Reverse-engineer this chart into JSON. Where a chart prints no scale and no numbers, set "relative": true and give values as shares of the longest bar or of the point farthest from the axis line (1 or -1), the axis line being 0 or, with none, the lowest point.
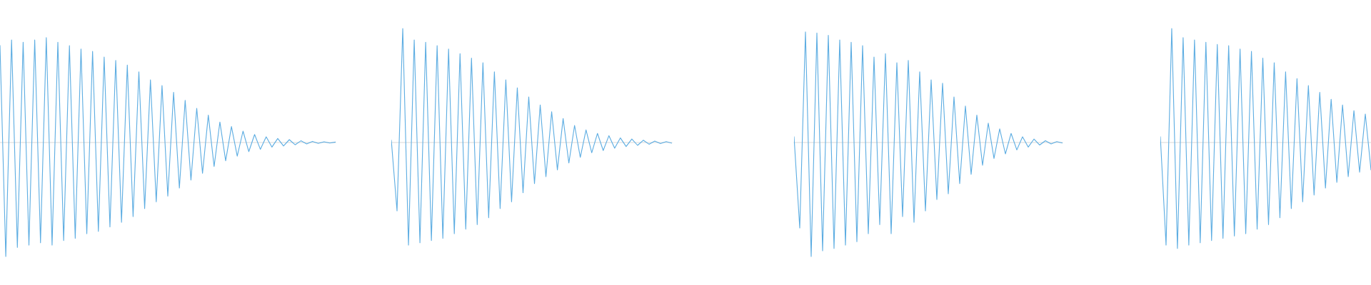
{
  "chart_data": [
    {
      "type": "line",
      "relative": true,
      "categories": [
        null,
        null,
        null,
        null,
        null,
        null,
        null,
        null,
        null,
        null,
        null,
        null,
        null,
        null,
        null,
        null,
        null,
        null,
        null,
        null,
        null,
        null,
        null,
        null,
        null,
        null,
        null,
        null,
        null,
        null,
        null,
        null,
        null,
        null,
        null,
        null,
        null,
        null,
        null,
        null,
        null,
        null,
        null,
        null,
        null,
        null,
        null,
        null,
        null,
        null,
        null,
        null,
        null,
        null,
        null,
        null,
        null,
        null,
        null
      ],
      "series": [
        {
          "color": "#5dade2",
          "values": [
            0.85,
            -1,
            0.9,
            -0.92,
            0.88,
            -0.9,
            0.9,
            -0.88,
            0.92,
            -0.9,
            0.88,
            -0.86,
            0.85,
            -0.84,
            0.82,
            -0.8,
            0.8,
            -0.78,
            0.75,
            -0.74,
            0.72,
            -0.7,
            0.68,
            -0.65,
            0.62,
            -0.58,
            0.55,
            -0.52,
            0.5,
            -0.47,
            0.44,
            -0.4,
            0.37,
            -0.33,
            0.3,
            -0.27,
            0.24,
            -0.21,
            0.18,
            -0.16,
            0.14,
            -0.12,
            0.1,
            -0.08,
            0.07,
            -0.06,
            0.05,
            -0.04,
            0.035,
            -0.03,
            0.025,
            -0.02,
            0.015,
            -0.012,
            0.01,
            -0.008,
            0.006,
            -0.005,
            0.004
          ]
        }
      ]
    },
    {
      "type": "line",
      "relative": true,
      "categories": [
        null,
        null,
        null,
        null,
        null,
        null,
        null,
        null,
        null,
        null,
        null,
        null,
        null,
        null,
        null,
        null,
        null,
        null,
        null,
        null,
        null,
        null,
        null,
        null,
        null,
        null,
        null,
        null,
        null,
        null,
        null,
        null,
        null,
        null,
        null,
        null,
        null,
        null,
        null,
        null,
        null,
        null,
        null,
        null,
        null,
        null,
        null,
        null,
        null,
        null
      ],
      "series": [
        {
          "color": "#5dade2",
          "values": [
            0.02,
            -0.6,
            1,
            -0.9,
            0.9,
            -0.88,
            0.88,
            -0.86,
            0.85,
            -0.84,
            0.82,
            -0.8,
            0.78,
            -0.76,
            0.74,
            -0.72,
            0.7,
            -0.66,
            0.62,
            -0.58,
            0.55,
            -0.52,
            0.48,
            -0.44,
            0.4,
            -0.36,
            0.33,
            -0.3,
            0.27,
            -0.24,
            0.21,
            -0.18,
            0.15,
            -0.13,
            0.11,
            -0.09,
            0.08,
            -0.07,
            0.06,
            -0.05,
            0.04,
            -0.035,
            0.03,
            -0.025,
            0.02,
            -0.015,
            0.012,
            -0.01,
            0.008,
            -0.006
          ]
        }
      ]
    },
    {
      "type": "line",
      "relative": true,
      "categories": [
        null,
        null,
        null,
        null,
        null,
        null,
        null,
        null,
        null,
        null,
        null,
        null,
        null,
        null,
        null,
        null,
        null,
        null,
        null,
        null,
        null,
        null,
        null,
        null,
        null,
        null,
        null,
        null,
        null,
        null,
        null,
        null,
        null,
        null,
        null,
        null,
        null,
        null,
        null,
        null,
        null,
        null,
        null,
        null,
        null,
        null,
        null,
        null
      ],
      "series": [
        {
          "color": "#5dade2",
          "values": [
            0.05,
            -0.75,
            0.97,
            -1,
            0.96,
            -0.95,
            0.94,
            -0.93,
            0.9,
            -0.9,
            0.88,
            -0.87,
            0.85,
            -0.8,
            0.75,
            -0.72,
            0.78,
            -0.8,
            0.7,
            -0.65,
            0.72,
            -0.7,
            0.62,
            -0.6,
            0.55,
            -0.5,
            0.52,
            -0.45,
            0.4,
            -0.36,
            0.32,
            -0.28,
            0.24,
            -0.2,
            0.17,
            -0.14,
            0.12,
            -0.1,
            0.08,
            -0.065,
            0.05,
            -0.04,
            0.03,
            -0.022,
            0.016,
            -0.012,
            0.008,
            -0.005
          ]
        }
      ]
    },
    {
      "type": "line",
      "relative": true,
      "categories": [
        null,
        null,
        null,
        null,
        null,
        null,
        null,
        null,
        null,
        null,
        null,
        null,
        null,
        null,
        null,
        null,
        null,
        null,
        null,
        null,
        null,
        null,
        null,
        null,
        null,
        null,
        null,
        null,
        null,
        null,
        null,
        null,
        null,
        null,
        null,
        null,
        null,
        null
      ],
      "series": [
        {
          "color": "#5dade2",
          "values": [
            0.05,
            -0.9,
            1,
            -0.93,
            0.92,
            -0.9,
            0.9,
            -0.88,
            0.88,
            -0.86,
            0.86,
            -0.84,
            0.85,
            -0.82,
            0.82,
            -0.8,
            0.8,
            -0.76,
            0.74,
            -0.72,
            0.7,
            -0.66,
            0.62,
            -0.58,
            0.56,
            -0.52,
            0.5,
            -0.46,
            0.44,
            -0.4,
            0.38,
            -0.35,
            0.33,
            -0.3,
            0.28,
            -0.26,
            0.25,
            -0.24
          ]
        }
      ]
    }
  ]
}
